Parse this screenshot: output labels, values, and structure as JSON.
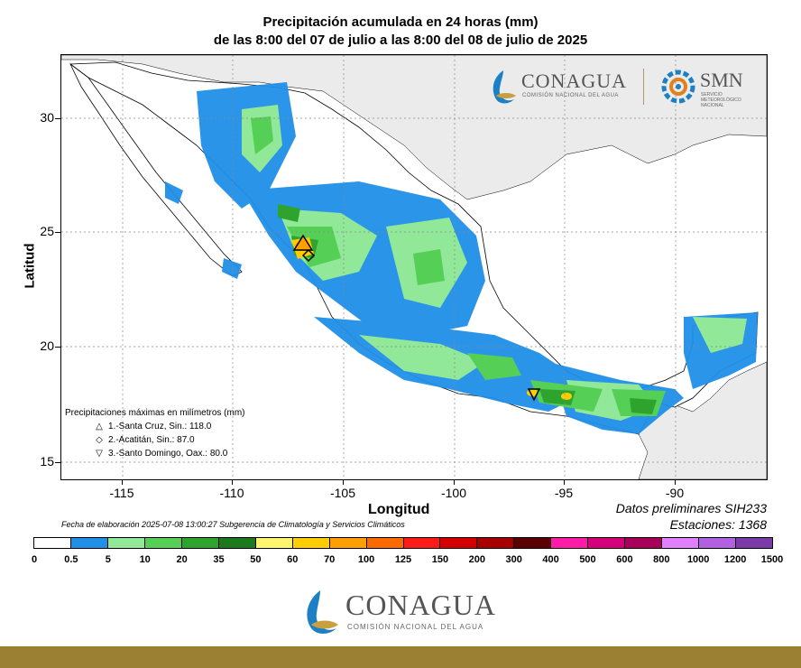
{
  "title": {
    "line1": "Precipitación acumulada en 24 horas (mm)",
    "line2": "de las 8:00 del 07 de julio a las 8:00 del 08 de julio de 2025"
  },
  "axes": {
    "xlabel": "Longitud",
    "ylabel": "Latitud",
    "x_ticks": [
      "-115",
      "-110",
      "-105",
      "-100",
      "-95",
      "-90"
    ],
    "y_ticks": [
      "30",
      "25",
      "20",
      "15"
    ]
  },
  "map_extent": {
    "lon": [
      -117.2,
      -86.3
    ],
    "lat": [
      14.3,
      32.8
    ]
  },
  "datos": {
    "line1": "Datos preliminares SIH233",
    "line2": "Estaciones:  1368"
  },
  "fecha": "Fecha de elaboración 2025-07-08 13:00:27 Subgerencia de Climatología y Servicios Climáticos",
  "legend": {
    "title": "Precipitaciones máximas en milímetros (mm)",
    "items": [
      {
        "symbol": "△",
        "label": "1.-Santa Cruz, Sin.: 118.0"
      },
      {
        "symbol": "◇",
        "label": "2.-Acatitán, Sin.: 87.0"
      },
      {
        "symbol": "▽",
        "label": "3.-Santo Domingo, Oax.: 80.0"
      }
    ]
  },
  "colorbar": {
    "labels": [
      "0",
      "0.5",
      "5",
      "10",
      "20",
      "35",
      "50",
      "60",
      "70",
      "100",
      "125",
      "150",
      "200",
      "300",
      "400",
      "500",
      "600",
      "800",
      "1000",
      "1200",
      "1500"
    ],
    "colors": [
      "#ffffff",
      "#1f8fe8",
      "#90e898",
      "#55cf55",
      "#2ea32e",
      "#1c7a1c",
      "#fff66e",
      "#ffcd00",
      "#ffa000",
      "#ff6a00",
      "#ff1a1a",
      "#d40000",
      "#a80000",
      "#5a0000",
      "#ff1aa8",
      "#d4007a",
      "#a8005a",
      "#e080ff",
      "#b060e0",
      "#7a3aa8",
      "#3a2a8a"
    ]
  },
  "logos": {
    "top_left_text": "CONAGUA",
    "top_left_sub": "COMISIÓN NACIONAL DEL AGUA",
    "top_right_text": "SMN",
    "top_right_sub": "SERVICIO METEOROLÓGICO NACIONAL",
    "bottom_text": "CONAGUA",
    "bottom_sub": "COMISIÓN NACIONAL DEL AGUA"
  },
  "colors": {
    "land": "#ffffff",
    "ocean": "#ffffff",
    "outside": "#ebebeb",
    "footer": "#9b7f32",
    "conagua_text": "#555555"
  }
}
